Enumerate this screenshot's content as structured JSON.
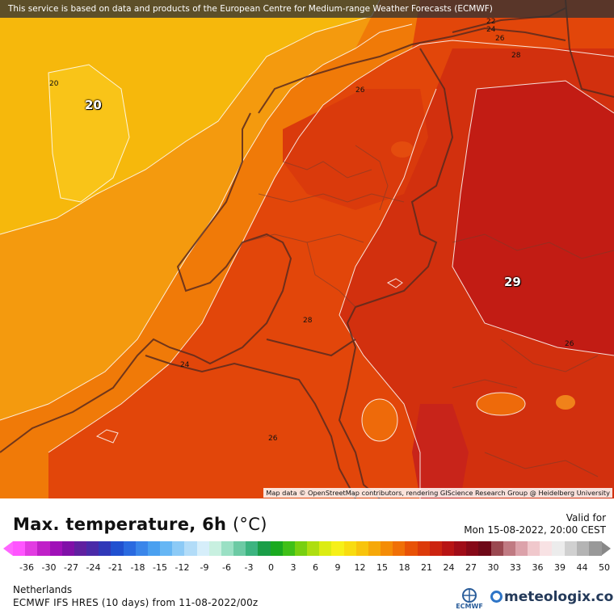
{
  "map": {
    "disclaimer": "This service is based on data and products of the European Centre for Medium-range Weather Forecasts (ECMWF)",
    "attribution": "Map data © OpenStreetMap contributors, rendering GIScience Research Group @ Heidelberg University",
    "big_labels": [
      "20",
      "29"
    ],
    "contour_labels": [
      "20",
      "22",
      "24",
      "26",
      "26",
      "28",
      "26",
      "24",
      "26",
      "28"
    ]
  },
  "legend": {
    "title": "Max. temperature, 6h",
    "unit": "(°C)",
    "valid_label": "Valid for",
    "valid_time": "Mon 15-08-2022, 20:00 CEST",
    "ticks": [
      "-36",
      "-30",
      "-27",
      "-24",
      "-21",
      "-18",
      "-15",
      "-12",
      "-9",
      "-6",
      "-3",
      "0",
      "3",
      "6",
      "9",
      "12",
      "15",
      "18",
      "21",
      "24",
      "27",
      "30",
      "33",
      "36",
      "39",
      "44",
      "50"
    ],
    "colors": [
      "#ff55ff",
      "#e23be2",
      "#c020c8",
      "#a010b8",
      "#8010a8",
      "#6020a0",
      "#4a2aa8",
      "#3038b8",
      "#2050d0",
      "#2a6ae0",
      "#3a86ea",
      "#4aa0f0",
      "#66b6f4",
      "#8ccaf6",
      "#b2dcf8",
      "#d6eefa",
      "#c8f0e0",
      "#9ae0c4",
      "#6ccaa4",
      "#3cb480",
      "#1a9e48",
      "#1aaa20",
      "#40c018",
      "#78d010",
      "#aede10",
      "#dcec12",
      "#f6f018",
      "#f8dc10",
      "#f8c40c",
      "#f6a808",
      "#f48c06",
      "#f07006",
      "#e85206",
      "#dc3a0a",
      "#cc2410",
      "#b81414",
      "#a00c18",
      "#860818",
      "#6e0818",
      "#9a4850",
      "#c07a82",
      "#dca2aa",
      "#f0c8cc",
      "#f8e2e4",
      "#ececec",
      "#d0d0d0",
      "#b4b4b4",
      "#999999"
    ],
    "region": "Netherlands",
    "model": "ECMWF IFS HRES (10 days) from 11-08-2022/00z",
    "ecmwf_text": "ECMWF",
    "brand": "meteologix.com"
  }
}
